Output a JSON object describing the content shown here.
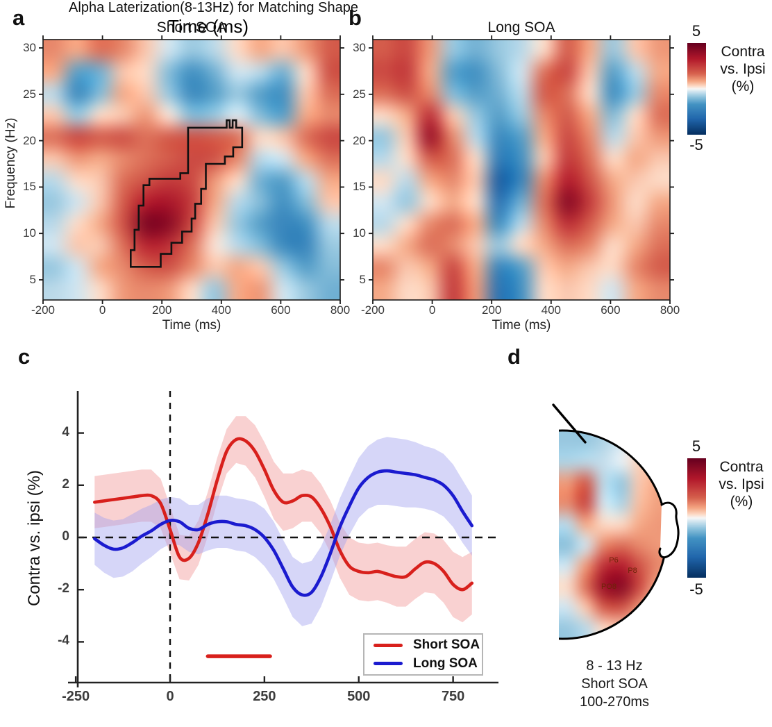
{
  "colors": {
    "short_soa_red": "#d8201c",
    "long_soa_blue": "#1b1bcf",
    "red_band": "rgba(242,152,152,0.45)",
    "blue_band": "rgba(158,158,238,0.42)",
    "cluster_outline": "#111111",
    "axis_color": "#222222",
    "colormap_stops": [
      [
        -5,
        "#053061"
      ],
      [
        -3.3,
        "#2166ac"
      ],
      [
        -1.7,
        "#4393c3"
      ],
      [
        -0.85,
        "#92c5de"
      ],
      [
        -0.3,
        "#d1e5f0"
      ],
      [
        0,
        "#f7f7f7"
      ],
      [
        0.3,
        "#fddbc7"
      ],
      [
        0.85,
        "#f4a582"
      ],
      [
        1.7,
        "#d6604d"
      ],
      [
        3.3,
        "#b2182b"
      ],
      [
        5,
        "#67001f"
      ]
    ]
  },
  "figure": {
    "panel_a": {
      "label": "a",
      "title": "Short SOA",
      "xlabel": "Time (ms)",
      "ylabel": "Frequency (Hz)"
    },
    "panel_b": {
      "label": "b",
      "title": "Long SOA",
      "xlabel": "Time (ms)"
    },
    "colorbar_top": {
      "max": "5",
      "min": "-5",
      "label_lines": [
        "Contra",
        "vs. Ipsi",
        "(%)"
      ]
    },
    "panel_c": {
      "label": "c",
      "title": "Alpha Laterization(8-13Hz) for Matching Shape",
      "xlabel": "Time (ms)",
      "ylabel": "Contra vs. ipsi (%)",
      "legend": [
        {
          "name": "Short SOA"
        },
        {
          "name": "Long SOA"
        }
      ]
    },
    "panel_d": {
      "label": "d",
      "caption_lines": [
        "8 - 13 Hz",
        "Short SOA",
        "100-270ms"
      ],
      "colorbar": {
        "max": "5",
        "min": "-5",
        "label_lines": [
          "Contra",
          "vs. Ipsi",
          "(%)"
        ]
      }
    }
  },
  "chart_data": [
    {
      "id": "a",
      "type": "heatmap",
      "title": "Short SOA",
      "xlabel": "Time (ms)",
      "ylabel": "Frequency (Hz)",
      "x_range": [
        -200,
        800
      ],
      "y_range": [
        5,
        30
      ],
      "value_range": [
        -5,
        5
      ],
      "xticks": [
        -200,
        0,
        200,
        400,
        600,
        800
      ],
      "yticks": [
        5,
        10,
        15,
        20,
        25,
        30
      ],
      "grid_x": [
        -200,
        -117,
        -33,
        50,
        133,
        217,
        300,
        383,
        467,
        550,
        633,
        717,
        800
      ],
      "grid_y_top_to_bottom": [
        30,
        27.7,
        25.5,
        23.2,
        20.9,
        18.6,
        16.4,
        14.1,
        11.8,
        9.5,
        7.3,
        5
      ],
      "grid": [
        [
          1.2,
          0.8,
          1.5,
          1.2,
          0.5,
          -0.3,
          -0.8,
          -0.5,
          0.3,
          0.8,
          0.5,
          1.0,
          1.8
        ],
        [
          0.8,
          -1.5,
          -1.2,
          0.5,
          0.3,
          -1.0,
          -1.8,
          -1.2,
          -0.3,
          -0.5,
          -1.2,
          0.3,
          2.0
        ],
        [
          -0.5,
          -2.0,
          -1.0,
          0.8,
          0.5,
          -0.8,
          -2.0,
          -1.5,
          -0.8,
          -1.5,
          -1.8,
          0.5,
          1.5
        ],
        [
          0.5,
          -0.8,
          0.3,
          0.5,
          1.0,
          0.2,
          -1.0,
          -0.8,
          -0.2,
          -1.0,
          -1.5,
          0.8,
          1.2
        ],
        [
          1.5,
          2.2,
          1.8,
          2.0,
          1.5,
          1.8,
          2.0,
          1.8,
          1.5,
          0.3,
          0.5,
          1.5,
          2.2
        ],
        [
          0.5,
          1.0,
          0.8,
          1.2,
          1.5,
          1.8,
          2.2,
          2.0,
          1.2,
          -0.5,
          -0.3,
          0.8,
          1.5
        ],
        [
          -0.5,
          0.3,
          0.5,
          1.5,
          2.0,
          2.5,
          2.2,
          1.0,
          0.3,
          -1.2,
          -1.5,
          -0.5,
          0.8
        ],
        [
          -0.8,
          -0.3,
          0.5,
          1.8,
          3.2,
          3.5,
          2.5,
          0.8,
          -0.5,
          -1.0,
          -1.8,
          -1.0,
          0.5
        ],
        [
          -0.5,
          0.3,
          0.8,
          2.0,
          4.5,
          4.2,
          2.2,
          0.5,
          -0.8,
          -1.5,
          -2.2,
          -1.8,
          -0.5
        ],
        [
          -0.3,
          0.5,
          0.5,
          1.5,
          3.0,
          2.8,
          1.5,
          0.2,
          -0.5,
          -1.0,
          -2.0,
          -2.2,
          -0.8
        ],
        [
          -0.8,
          -0.3,
          0.8,
          1.2,
          1.8,
          2.0,
          1.2,
          0.5,
          0.8,
          0.5,
          -0.8,
          -1.5,
          -1.0
        ],
        [
          -0.5,
          -0.3,
          0.3,
          1.0,
          1.2,
          1.0,
          0.3,
          -0.8,
          0.8,
          1.0,
          -0.3,
          -0.8,
          -1.2
        ]
      ],
      "significant_cluster_outline_t_f": [
        [
          95,
          6.4
        ],
        [
          95,
          8.2
        ],
        [
          108,
          8.2
        ],
        [
          108,
          10.4
        ],
        [
          122,
          10.4
        ],
        [
          122,
          13.0
        ],
        [
          138,
          13.0
        ],
        [
          138,
          15.2
        ],
        [
          158,
          15.2
        ],
        [
          158,
          15.9
        ],
        [
          262,
          15.9
        ],
        [
          262,
          16.5
        ],
        [
          288,
          16.5
        ],
        [
          288,
          21.4
        ],
        [
          418,
          21.4
        ],
        [
          418,
          22.2
        ],
        [
          428,
          22.2
        ],
        [
          428,
          21.4
        ],
        [
          438,
          21.4
        ],
        [
          438,
          22.2
        ],
        [
          450,
          22.2
        ],
        [
          450,
          21.4
        ],
        [
          470,
          21.4
        ],
        [
          470,
          19.3
        ],
        [
          440,
          19.3
        ],
        [
          440,
          18.3
        ],
        [
          412,
          18.3
        ],
        [
          412,
          17.5
        ],
        [
          348,
          17.5
        ],
        [
          348,
          14.8
        ],
        [
          332,
          14.8
        ],
        [
          332,
          13.2
        ],
        [
          312,
          13.2
        ],
        [
          312,
          11.6
        ],
        [
          300,
          11.6
        ],
        [
          300,
          10.2
        ],
        [
          268,
          10.2
        ],
        [
          268,
          9.0
        ],
        [
          232,
          9.0
        ],
        [
          232,
          7.8
        ],
        [
          196,
          7.8
        ],
        [
          196,
          6.4
        ]
      ]
    },
    {
      "id": "b",
      "type": "heatmap",
      "title": "Long SOA",
      "xlabel": "Time (ms)",
      "ylabel": "Frequency (Hz)",
      "x_range": [
        -200,
        800
      ],
      "y_range": [
        5,
        30
      ],
      "value_range": [
        -5,
        5
      ],
      "xticks": [
        -200,
        0,
        200,
        400,
        600,
        800
      ],
      "yticks": [
        5,
        10,
        15,
        20,
        25,
        30
      ],
      "grid_x": [
        -200,
        -117,
        -33,
        50,
        133,
        217,
        300,
        383,
        467,
        550,
        633,
        717,
        800
      ],
      "grid_y_top_to_bottom": [
        30,
        27.7,
        25.5,
        23.2,
        20.9,
        18.6,
        16.4,
        14.1,
        11.8,
        9.5,
        7.3,
        5
      ],
      "grid": [
        [
          1.8,
          2.2,
          1.0,
          -0.8,
          -1.2,
          -0.8,
          -0.5,
          0.3,
          1.8,
          0.8,
          -0.8,
          0.5,
          1.0
        ],
        [
          2.2,
          2.5,
          0.8,
          -1.5,
          -1.8,
          -1.0,
          -0.3,
          1.5,
          2.2,
          0.5,
          -1.5,
          -0.5,
          0.8
        ],
        [
          1.5,
          2.0,
          1.2,
          -1.0,
          -1.5,
          -1.2,
          -0.5,
          1.8,
          1.5,
          0.3,
          -1.8,
          -0.8,
          1.2
        ],
        [
          0.3,
          0.8,
          2.8,
          0.5,
          -0.8,
          -1.5,
          -0.8,
          1.2,
          1.8,
          0.8,
          -1.0,
          0.3,
          1.5
        ],
        [
          -0.8,
          0.5,
          3.8,
          1.2,
          -0.5,
          -2.0,
          -1.5,
          0.8,
          2.2,
          1.2,
          -0.5,
          0.5,
          1.0
        ],
        [
          -0.5,
          0.3,
          1.8,
          1.5,
          0.3,
          -2.5,
          -1.8,
          0.5,
          2.5,
          1.5,
          0.3,
          0.8,
          0.5
        ],
        [
          0.3,
          -0.5,
          0.8,
          1.2,
          0.5,
          -3.5,
          -2.2,
          1.2,
          3.2,
          2.0,
          0.8,
          0.5,
          0.3
        ],
        [
          -0.3,
          -0.8,
          0.3,
          0.8,
          0.3,
          -2.8,
          -1.2,
          1.5,
          4.2,
          2.5,
          1.0,
          0.3,
          0.8
        ],
        [
          -0.5,
          0.3,
          1.2,
          1.5,
          0.8,
          -1.8,
          -0.5,
          1.2,
          2.8,
          1.8,
          0.8,
          0.5,
          1.2
        ],
        [
          0.3,
          0.8,
          1.5,
          1.2,
          0.5,
          -0.8,
          0.3,
          0.8,
          1.5,
          1.2,
          0.3,
          0.8,
          1.5
        ],
        [
          1.2,
          0.5,
          0.8,
          2.2,
          0.8,
          -2.2,
          -1.5,
          0.5,
          0.8,
          0.5,
          0.3,
          1.2,
          1.8
        ],
        [
          0.8,
          0.3,
          0.5,
          2.5,
          1.0,
          -2.8,
          -1.8,
          0.3,
          0.5,
          0.3,
          -0.3,
          0.8,
          1.2
        ]
      ]
    },
    {
      "id": "c",
      "type": "line",
      "title": "Alpha Laterization(8-13Hz) for Matching Shape",
      "xlabel": "Time (ms)",
      "ylabel": "Contra vs. ipsi (%)",
      "xticks": [
        -250,
        0,
        250,
        500,
        750
      ],
      "yticks": [
        -4,
        -2,
        0,
        2,
        4
      ],
      "xlim": [
        -265,
        865
      ],
      "ylim": [
        -5.5,
        5.5
      ],
      "x": [
        -200,
        -175,
        -150,
        -125,
        -100,
        -75,
        -50,
        -25,
        0,
        25,
        50,
        75,
        100,
        125,
        150,
        175,
        200,
        225,
        250,
        275,
        300,
        325,
        350,
        375,
        400,
        425,
        450,
        475,
        500,
        525,
        550,
        575,
        600,
        625,
        650,
        675,
        700,
        725,
        750,
        775,
        800
      ],
      "series": [
        {
          "name": "Short SOA",
          "color_key": "short_soa_red",
          "values": [
            1.35,
            1.4,
            1.45,
            1.5,
            1.55,
            1.6,
            1.6,
            1.3,
            0.3,
            -0.75,
            -0.8,
            -0.2,
            0.9,
            2.2,
            3.3,
            3.75,
            3.7,
            3.3,
            2.6,
            1.8,
            1.35,
            1.4,
            1.6,
            1.55,
            1.1,
            0.4,
            -0.5,
            -1.1,
            -1.3,
            -1.35,
            -1.3,
            -1.4,
            -1.5,
            -1.5,
            -1.2,
            -0.95,
            -1.0,
            -1.3,
            -1.8,
            -2.0,
            -1.75
          ],
          "band_halfwidth": [
            1.0,
            1.0,
            1.0,
            1.0,
            1.0,
            1.0,
            1.0,
            0.95,
            0.9,
            0.85,
            0.85,
            0.85,
            0.85,
            0.85,
            0.85,
            0.9,
            0.95,
            1.0,
            1.05,
            1.1,
            1.1,
            1.05,
            1.0,
            0.95,
            0.95,
            1.0,
            1.05,
            1.1,
            1.1,
            1.1,
            1.1,
            1.1,
            1.15,
            1.15,
            1.15,
            1.15,
            1.15,
            1.2,
            1.25,
            1.25,
            1.2
          ]
        },
        {
          "name": "Long SOA",
          "color_key": "long_soa_blue",
          "values": [
            -0.05,
            -0.3,
            -0.45,
            -0.4,
            -0.2,
            0.05,
            0.25,
            0.5,
            0.65,
            0.6,
            0.35,
            0.3,
            0.5,
            0.6,
            0.6,
            0.5,
            0.45,
            0.3,
            0.0,
            -0.5,
            -1.2,
            -1.9,
            -2.2,
            -2.1,
            -1.5,
            -0.6,
            0.4,
            1.2,
            1.9,
            2.3,
            2.5,
            2.55,
            2.5,
            2.45,
            2.4,
            2.3,
            2.2,
            2.0,
            1.6,
            1.0,
            0.45
          ],
          "band_halfwidth": [
            1.0,
            1.05,
            1.1,
            1.1,
            1.1,
            1.05,
            1.0,
            0.95,
            0.9,
            0.9,
            0.9,
            0.95,
            1.0,
            1.0,
            1.0,
            1.0,
            1.0,
            1.05,
            1.1,
            1.1,
            1.1,
            1.15,
            1.2,
            1.2,
            1.15,
            1.1,
            1.1,
            1.1,
            1.15,
            1.2,
            1.25,
            1.3,
            1.3,
            1.3,
            1.25,
            1.2,
            1.2,
            1.2,
            1.2,
            1.2,
            1.15
          ]
        }
      ],
      "zero_lines": {
        "vertical_x": 0,
        "horizontal_y": 0,
        "style": "dashed"
      },
      "significance_bar": {
        "y": -4.55,
        "t_start": 100,
        "t_end": 265,
        "color_key": "short_soa_red"
      }
    },
    {
      "id": "d",
      "type": "topomap",
      "caption": "8 - 13 Hz Short SOA 100-270ms",
      "value_range": [
        -5,
        5
      ],
      "electrodes": [
        {
          "label": "P6",
          "x": 884,
          "y": 807
        },
        {
          "label": "P8",
          "x": 911,
          "y": 822
        },
        {
          "label": "PO8",
          "x": 877,
          "y": 845
        }
      ],
      "grid": [
        [
          -0.8,
          -0.8,
          -0.6,
          -0.3,
          0.2,
          0.3
        ],
        [
          -0.6,
          -0.5,
          -0.4,
          -0.1,
          0.4,
          0.5
        ],
        [
          1.0,
          1.8,
          -0.5,
          -0.8,
          0.5,
          0.8
        ],
        [
          1.2,
          2.2,
          -0.3,
          -0.6,
          0.6,
          0.9
        ],
        [
          -0.5,
          0.8,
          0.3,
          0.3,
          0.8,
          1.0
        ],
        [
          -0.9,
          -0.3,
          1.2,
          1.5,
          1.2,
          1.0
        ],
        [
          -0.3,
          1.0,
          2.8,
          3.2,
          2.0,
          1.2
        ],
        [
          0.3,
          1.5,
          3.8,
          4.2,
          2.2,
          0.8
        ],
        [
          -0.3,
          0.5,
          1.8,
          2.0,
          1.0,
          0.3
        ],
        [
          -0.8,
          -0.5,
          0.3,
          0.5,
          0.3,
          0.0
        ]
      ]
    }
  ]
}
